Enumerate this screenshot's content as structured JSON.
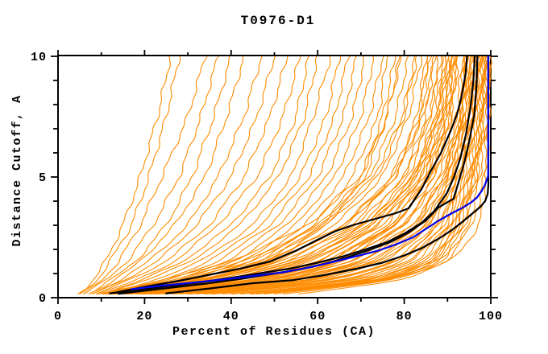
{
  "chart_data": {
    "type": "line",
    "title": "T0976-D1",
    "xlabel": "Percent of Residues (CA)",
    "ylabel": "Distance Cutoff, A",
    "xlim": [
      0,
      100
    ],
    "ylim": [
      0,
      10
    ],
    "x_major_ticks": [
      0,
      20,
      40,
      60,
      80,
      100
    ],
    "x_minor_ticks": [
      10,
      30,
      50,
      70,
      90
    ],
    "y_major_ticks": [
      0,
      5,
      10
    ],
    "y_minor_ticks": [
      1,
      2,
      3,
      4,
      6,
      7,
      8,
      9
    ],
    "grid": false,
    "legend": null,
    "colors": {
      "ensemble": "#ff8c00",
      "highlighted": "#000000",
      "reference": "#0000ee",
      "axis": "#000000",
      "text": "#000000",
      "background": "#ffffff"
    },
    "series": {
      "reference_model": {
        "name": "reference-model-blue",
        "points": [
          [
            17,
            0.35
          ],
          [
            24,
            0.5
          ],
          [
            31,
            0.62
          ],
          [
            38,
            0.75
          ],
          [
            45,
            0.9
          ],
          [
            52,
            1.05
          ],
          [
            58,
            1.25
          ],
          [
            64,
            1.5
          ],
          [
            69,
            1.72
          ],
          [
            74,
            1.95
          ],
          [
            78,
            2.2
          ],
          [
            82,
            2.5
          ],
          [
            85,
            2.85
          ],
          [
            88,
            3.2
          ],
          [
            91,
            3.5
          ],
          [
            93.4,
            3.72
          ],
          [
            95.5,
            3.95
          ],
          [
            96.8,
            4.15
          ],
          [
            97.8,
            4.4
          ],
          [
            98.6,
            4.65
          ],
          [
            99,
            4.85
          ],
          [
            99.4,
            5.05
          ],
          [
            99.4,
            10
          ]
        ]
      },
      "highlighted_models": [
        {
          "name": "highlighted-model-black-1",
          "points": [
            [
              13,
              0.2
            ],
            [
              20,
              0.45
            ],
            [
              28,
              0.7
            ],
            [
              35,
              0.95
            ],
            [
              42,
              1.2
            ],
            [
              49,
              1.5
            ],
            [
              55,
              1.95
            ],
            [
              60,
              2.4
            ],
            [
              64,
              2.75
            ],
            [
              68,
              3.0
            ],
            [
              73,
              3.25
            ],
            [
              78,
              3.5
            ],
            [
              81,
              3.7
            ],
            [
              84,
              4.5
            ],
            [
              86,
              5.2
            ],
            [
              88.5,
              6.0
            ],
            [
              90.7,
              6.9
            ],
            [
              92.2,
              7.6
            ],
            [
              93.2,
              8.3
            ],
            [
              94.2,
              9.3
            ],
            [
              94.5,
              10
            ]
          ]
        },
        {
          "name": "highlighted-model-black-2",
          "points": [
            [
              12,
              0.18
            ],
            [
              22,
              0.4
            ],
            [
              32,
              0.62
            ],
            [
              41,
              0.85
            ],
            [
              48,
              1.05
            ],
            [
              54,
              1.22
            ],
            [
              60,
              1.45
            ],
            [
              66,
              1.72
            ],
            [
              71,
              2.0
            ],
            [
              76,
              2.3
            ],
            [
              80,
              2.65
            ],
            [
              84,
              3.1
            ],
            [
              87,
              3.6
            ],
            [
              89.9,
              4.35
            ],
            [
              91.5,
              5.0
            ],
            [
              93,
              5.8
            ],
            [
              94.3,
              6.8
            ],
            [
              95.3,
              7.9
            ],
            [
              96,
              9.0
            ],
            [
              96.3,
              10
            ]
          ]
        },
        {
          "name": "highlighted-model-black-3",
          "points": [
            [
              14,
              0.16
            ],
            [
              24,
              0.37
            ],
            [
              34,
              0.58
            ],
            [
              43,
              0.8
            ],
            [
              50,
              1.0
            ],
            [
              56,
              1.18
            ],
            [
              62,
              1.42
            ],
            [
              67,
              1.68
            ],
            [
              72,
              1.98
            ],
            [
              77,
              2.32
            ],
            [
              81,
              2.7
            ],
            [
              85,
              3.2
            ],
            [
              88,
              3.75
            ],
            [
              91.4,
              4.1
            ],
            [
              92.5,
              4.75
            ],
            [
              93.8,
              5.55
            ],
            [
              95,
              6.45
            ],
            [
              96.2,
              7.6
            ],
            [
              96.7,
              8.8
            ],
            [
              96.9,
              10
            ]
          ]
        },
        {
          "name": "highlighted-model-black-4",
          "points": [
            [
              25,
              0.18
            ],
            [
              35,
              0.38
            ],
            [
              45,
              0.6
            ],
            [
              54,
              0.72
            ],
            [
              62,
              0.95
            ],
            [
              69,
              1.2
            ],
            [
              75,
              1.45
            ],
            [
              80,
              1.75
            ],
            [
              84,
              2.05
            ],
            [
              88,
              2.45
            ],
            [
              91,
              2.8
            ],
            [
              93.5,
              3.15
            ],
            [
              95.5,
              3.45
            ],
            [
              97.5,
              3.75
            ],
            [
              98.7,
              4.0
            ],
            [
              99.3,
              4.3
            ],
            [
              99.45,
              4.7
            ],
            [
              99.45,
              10
            ]
          ]
        }
      ],
      "ensemble": {
        "name": "predictor-model-ensemble",
        "count": 77,
        "anchor_cutoffs": [
          0.15,
          0.7,
          1.5,
          3,
          5,
          7.5,
          10
        ],
        "models_x": [
          [
            5,
            8,
            11,
            15,
            19,
            23,
            26
          ],
          [
            5,
            9,
            12,
            17,
            21,
            25,
            28
          ],
          [
            6,
            10,
            14,
            19,
            24,
            30,
            34
          ],
          [
            6,
            11,
            16,
            22,
            28,
            33,
            37
          ],
          [
            7,
            12,
            18,
            25,
            31,
            36,
            40
          ],
          [
            7,
            13,
            19,
            27,
            34,
            39,
            43
          ],
          [
            8,
            14,
            21,
            30,
            37,
            43,
            47
          ],
          [
            8,
            15,
            23,
            32,
            40,
            46,
            50
          ],
          [
            9,
            16,
            25,
            35,
            43,
            49,
            53
          ],
          [
            9,
            18,
            27,
            37,
            46,
            52,
            56
          ],
          [
            10,
            19,
            29,
            40,
            49,
            55,
            58
          ],
          [
            10,
            20,
            31,
            42,
            51,
            57,
            60
          ],
          [
            11,
            22,
            33,
            45,
            54,
            59,
            63
          ],
          [
            11,
            24,
            35,
            47,
            56,
            62,
            65
          ],
          [
            12,
            25,
            37,
            49,
            58,
            64,
            67
          ],
          [
            12,
            27,
            39,
            51,
            60,
            66,
            69
          ],
          [
            13,
            28,
            41,
            53,
            62,
            68,
            71
          ],
          [
            13,
            30,
            43,
            55,
            64,
            70,
            73
          ],
          [
            14,
            31,
            45,
            57,
            66,
            72,
            75
          ],
          [
            14,
            33,
            47,
            59,
            68,
            74,
            76
          ],
          [
            15,
            34,
            48,
            61,
            70,
            75,
            78
          ],
          [
            15,
            35,
            50,
            62,
            71,
            76,
            79
          ],
          [
            10,
            28,
            45,
            60,
            72,
            78,
            81
          ],
          [
            11,
            30,
            47,
            62,
            74,
            80,
            83
          ],
          [
            12,
            32,
            49,
            64,
            75,
            81,
            84
          ],
          [
            13,
            34,
            51,
            66,
            77,
            83,
            85
          ],
          [
            14,
            36,
            53,
            68,
            78,
            84,
            86
          ],
          [
            15,
            38,
            55,
            70,
            80,
            85,
            87
          ],
          [
            16,
            40,
            57,
            71,
            81,
            86,
            88
          ],
          [
            17,
            42,
            59,
            73,
            82,
            87,
            89
          ],
          [
            18,
            44,
            61,
            74,
            83,
            88,
            90
          ],
          [
            19,
            46,
            63,
            76,
            84,
            89,
            91
          ],
          [
            20,
            48,
            65,
            77,
            85,
            90,
            91.5
          ],
          [
            21,
            50,
            66,
            78,
            86,
            90.5,
            92
          ],
          [
            22,
            52,
            68,
            80,
            87,
            91,
            92.5
          ],
          [
            16,
            38,
            56,
            72,
            83,
            88.5,
            90.5
          ],
          [
            14,
            34,
            52,
            69,
            80,
            86,
            88.5
          ],
          [
            12,
            30,
            48,
            66,
            78,
            84.5,
            87
          ],
          [
            18,
            42,
            60,
            75,
            84.5,
            89.5,
            91
          ],
          [
            20,
            46,
            64,
            78,
            86,
            90.8,
            92.3
          ],
          [
            15,
            36,
            54,
            71,
            82,
            87.8,
            89.8
          ],
          [
            17,
            40,
            58,
            74,
            84,
            89.2,
            90.8
          ],
          [
            18,
            44,
            62,
            78,
            87,
            92,
            93.5
          ],
          [
            20,
            48,
            66,
            80,
            88,
            92.5,
            94
          ],
          [
            22,
            52,
            70,
            82,
            89,
            93,
            94.5
          ],
          [
            24,
            55,
            72,
            84,
            90,
            93.5,
            95
          ],
          [
            26,
            58,
            74,
            85,
            91,
            94,
            95.5
          ],
          [
            28,
            60,
            76,
            86,
            91.5,
            94.5,
            96
          ],
          [
            30,
            62,
            78,
            87,
            92,
            95,
            96.5
          ],
          [
            25,
            56,
            73,
            85,
            91,
            94.2,
            95.8
          ],
          [
            21,
            50,
            68,
            82,
            89.5,
            93.2,
            94.8
          ],
          [
            19,
            46,
            65,
            80,
            88.5,
            92.8,
            94.2
          ],
          [
            32,
            64,
            79,
            88,
            92.5,
            95.5,
            97
          ],
          [
            34,
            66,
            80,
            89,
            93,
            96,
            97.3
          ],
          [
            36,
            68,
            82,
            90,
            93.5,
            96.3,
            97.6
          ],
          [
            38,
            70,
            83,
            90.5,
            94,
            96.6,
            97.9
          ],
          [
            40,
            72,
            84,
            91,
            94.5,
            97,
            98.2
          ],
          [
            42,
            73,
            85,
            91.5,
            95,
            97.3,
            98.4
          ],
          [
            44,
            74,
            86,
            92,
            95.5,
            97.6,
            98.6
          ],
          [
            46,
            75,
            87,
            92.5,
            96,
            97.9,
            98.8
          ],
          [
            48,
            76,
            87.5,
            93,
            96.3,
            98.1,
            99
          ],
          [
            50,
            77,
            88,
            93.5,
            96.6,
            98.3,
            99.2
          ],
          [
            35,
            67,
            81,
            89.5,
            93.2,
            96.1,
            97.4
          ],
          [
            30,
            63,
            78.5,
            88.2,
            92.7,
            95.7,
            96.8
          ],
          [
            27,
            59,
            75,
            86,
            91.7,
            94.7,
            96.2
          ],
          [
            23,
            54,
            71,
            83.5,
            90.3,
            93.8,
            95.2
          ],
          [
            45,
            74.5,
            86.5,
            92.2,
            95.7,
            97.7,
            98.7
          ],
          [
            52,
            78,
            89,
            94,
            97,
            98.5,
            99.4
          ],
          [
            9,
            24,
            40,
            58,
            70,
            76,
            79.5
          ],
          [
            10,
            26,
            43,
            61,
            73,
            79.5,
            82.5
          ],
          [
            13,
            33,
            50,
            67,
            77.5,
            83.5,
            85.5
          ],
          [
            16,
            39,
            57,
            72.5,
            82.5,
            87.5,
            89.5
          ],
          [
            19,
            45,
            63,
            77,
            85.5,
            90.2,
            91.8
          ],
          [
            23,
            53,
            70.5,
            82.8,
            89.2,
            93.4,
            94.6
          ],
          [
            55,
            80,
            90,
            95,
            97.5,
            99,
            99.8
          ],
          [
            40,
            72,
            88,
            96,
            98.5,
            99.3,
            99.7
          ],
          [
            45,
            76,
            91,
            97.5,
            99,
            99.6,
            99.9
          ]
        ]
      }
    }
  }
}
